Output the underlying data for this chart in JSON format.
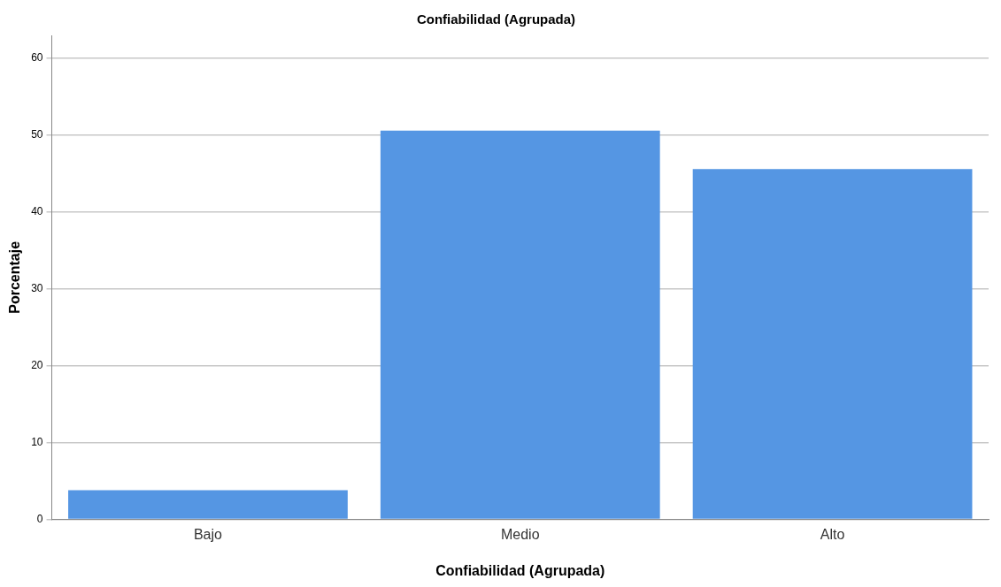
{
  "chart_data": {
    "type": "bar",
    "title": "Confiabilidad (Agrupada)",
    "xlabel": "Confiabilidad (Agrupada)",
    "ylabel": "Porcentaje",
    "categories": [
      "Bajo",
      "Medio",
      "Alto"
    ],
    "values": [
      3.8,
      50.6,
      45.6
    ],
    "color": "#5596e3",
    "ylim": [
      0,
      63
    ],
    "yticks": [
      0,
      10,
      20,
      30,
      40,
      50,
      60
    ],
    "grid": "y",
    "legend": false
  }
}
